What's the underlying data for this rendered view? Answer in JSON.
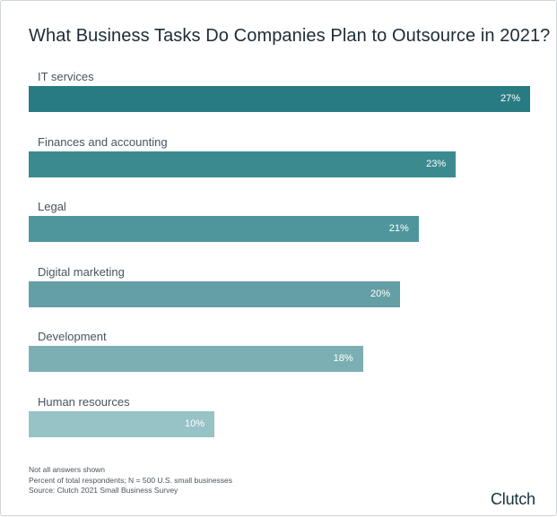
{
  "chart_data": {
    "type": "bar",
    "orientation": "horizontal",
    "title": "What Business Tasks Do Companies Plan to Outsource in 2021?",
    "categories": [
      "IT services",
      "Finances and accounting",
      "Legal",
      "Digital marketing",
      "Development",
      "Human resources"
    ],
    "values": [
      27,
      23,
      21,
      20,
      18,
      10
    ],
    "value_labels": [
      "27%",
      "23%",
      "21%",
      "20%",
      "18%",
      "10%"
    ],
    "colors": [
      "#287b82",
      "#3b8a90",
      "#4f969c",
      "#649fa5",
      "#7bafb4",
      "#97c2c6"
    ],
    "xlim": [
      0,
      27
    ],
    "grid": false,
    "legend": "none"
  },
  "notes": {
    "line1": "Not all answers shown",
    "line2": "Percent of total respondents; N = 500 U.S. small businesses",
    "line3": "Source: Clutch 2021 Small Business Survey"
  },
  "brand": {
    "name": "Clutch",
    "accent_color": "#e6594a"
  }
}
